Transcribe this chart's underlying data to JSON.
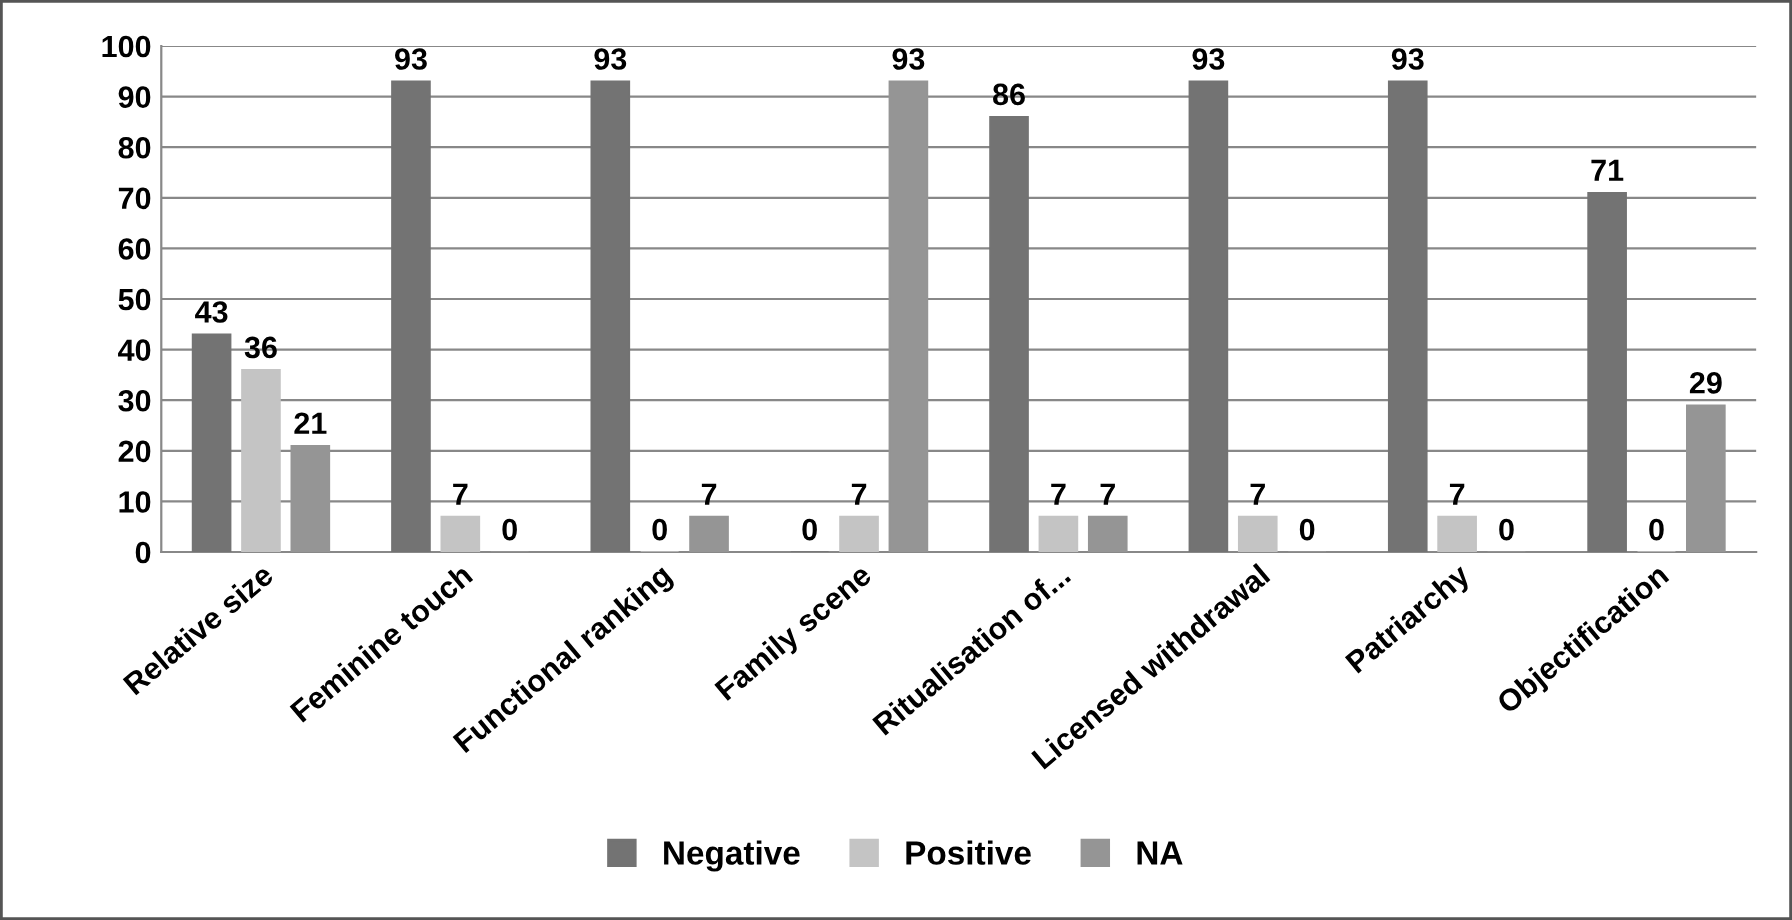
{
  "chart_data": {
    "type": "bar",
    "categories": [
      "Relative size",
      "Feminine touch",
      "Functional ranking",
      "Family scene",
      "Ritualisation of...",
      "Licensed withdrawal",
      "Patriarchy",
      "Objectification"
    ],
    "series": [
      {
        "name": "Negative",
        "color": "#737373",
        "values": [
          43,
          93,
          93,
          0,
          86,
          93,
          93,
          71
        ]
      },
      {
        "name": "Positive",
        "color": "#c4c4c4",
        "values": [
          36,
          7,
          0,
          7,
          7,
          7,
          7,
          0
        ]
      },
      {
        "name": "NA",
        "color": "#959595",
        "values": [
          21,
          0,
          7,
          93,
          7,
          0,
          0,
          29
        ]
      }
    ],
    "ylim": [
      0,
      100
    ],
    "yticks": [
      0,
      10,
      20,
      30,
      40,
      50,
      60,
      70,
      80,
      90,
      100
    ],
    "grid": "y",
    "legend": "bottom",
    "data_labels": true
  }
}
